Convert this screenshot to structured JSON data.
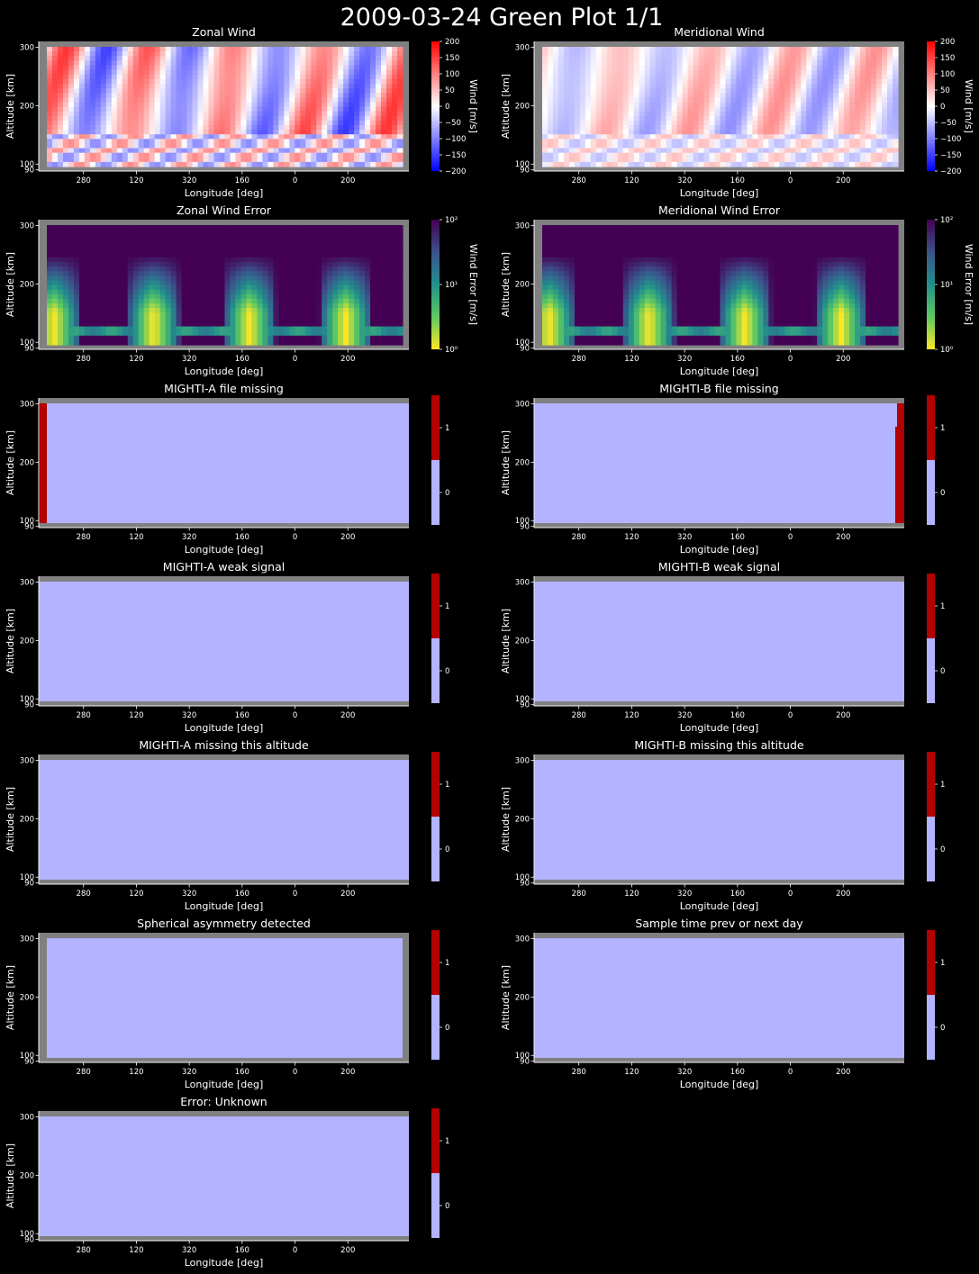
{
  "figure_title": "2009-03-24 Green Plot 1/1",
  "colors": {
    "background": "#000000",
    "nan_gray": "#808080",
    "flag_zero": "#b3b3ff",
    "flag_one": "#b30000",
    "text": "#ffffff"
  },
  "icons": [],
  "chart_data": [
    {
      "type": "heatmap",
      "title": "Zonal Wind",
      "xlabel": "Longitude [deg]",
      "ylabel": "Altitude [km]",
      "xtick_labels": [
        "280",
        "120",
        "320",
        "160",
        "0",
        "200"
      ],
      "yticks": [
        90,
        100,
        200,
        300
      ],
      "ylim": [
        88,
        310
      ],
      "colormap": "bwr",
      "clim": [
        -200,
        200
      ],
      "colorbar_label": "Wind [m/s]",
      "colorbar_ticks": [
        "200",
        "150",
        "100",
        "50",
        "0",
        "−50",
        "−100",
        "−150",
        "−200"
      ]
    },
    {
      "type": "heatmap",
      "title": "Meridional Wind",
      "xlabel": "Longitude [deg]",
      "ylabel": "Altitude [km]",
      "xtick_labels": [
        "280",
        "120",
        "320",
        "160",
        "0",
        "200"
      ],
      "yticks": [
        90,
        100,
        200,
        300
      ],
      "ylim": [
        88,
        310
      ],
      "colormap": "bwr",
      "clim": [
        -200,
        200
      ],
      "colorbar_label": "Wind [m/s]",
      "colorbar_ticks": [
        "200",
        "150",
        "100",
        "50",
        "0",
        "−50",
        "−100",
        "−150",
        "−200"
      ]
    },
    {
      "type": "heatmap",
      "title": "Zonal Wind Error",
      "xlabel": "Longitude [deg]",
      "ylabel": "Altitude [km]",
      "xtick_labels": [
        "280",
        "120",
        "320",
        "160",
        "0",
        "200"
      ],
      "yticks": [
        90,
        100,
        200,
        300
      ],
      "ylim": [
        88,
        310
      ],
      "colormap": "viridis_r",
      "colorbar_scale": "log",
      "clim": [
        1,
        100
      ],
      "colorbar_label": "Wind Error [m/s]",
      "colorbar_ticks": [
        "10²",
        "10¹",
        "10⁰"
      ]
    },
    {
      "type": "heatmap",
      "title": "Meridional Wind Error",
      "xlabel": "Longitude [deg]",
      "ylabel": "Altitude [km]",
      "xtick_labels": [
        "280",
        "120",
        "320",
        "160",
        "0",
        "200"
      ],
      "yticks": [
        90,
        100,
        200,
        300
      ],
      "ylim": [
        88,
        310
      ],
      "colormap": "viridis_r",
      "colorbar_scale": "log",
      "clim": [
        1,
        100
      ],
      "colorbar_label": "Wind Error [m/s]",
      "colorbar_ticks": [
        "10²",
        "10¹",
        "10⁰"
      ]
    },
    {
      "type": "heatmap",
      "title": "MIGHTI-A file missing",
      "xlabel": "Longitude [deg]",
      "ylabel": "Altitude [km]",
      "xtick_labels": [
        "280",
        "120",
        "320",
        "160",
        "0",
        "200"
      ],
      "yticks": [
        90,
        100,
        200,
        300
      ],
      "ylim": [
        88,
        310
      ],
      "colormap": "flag",
      "colorbar_label": "",
      "colorbar_ticks": [
        "1",
        "0"
      ]
    },
    {
      "type": "heatmap",
      "title": "MIGHTI-B file missing",
      "xlabel": "Longitude [deg]",
      "ylabel": "Altitude [km]",
      "xtick_labels": [
        "280",
        "120",
        "320",
        "160",
        "0",
        "200"
      ],
      "yticks": [
        90,
        100,
        200,
        300
      ],
      "ylim": [
        88,
        310
      ],
      "colormap": "flag",
      "colorbar_label": "",
      "colorbar_ticks": [
        "1",
        "0"
      ]
    },
    {
      "type": "heatmap",
      "title": "MIGHTI-A weak signal",
      "xlabel": "Longitude [deg]",
      "ylabel": "Altitude [km]",
      "xtick_labels": [
        "280",
        "120",
        "320",
        "160",
        "0",
        "200"
      ],
      "yticks": [
        90,
        100,
        200,
        300
      ],
      "ylim": [
        88,
        310
      ],
      "colormap": "flag",
      "colorbar_label": "",
      "colorbar_ticks": [
        "1",
        "0"
      ]
    },
    {
      "type": "heatmap",
      "title": "MIGHTI-B weak signal",
      "xlabel": "Longitude [deg]",
      "ylabel": "Altitude [km]",
      "xtick_labels": [
        "280",
        "120",
        "320",
        "160",
        "0",
        "200"
      ],
      "yticks": [
        90,
        100,
        200,
        300
      ],
      "ylim": [
        88,
        310
      ],
      "colormap": "flag",
      "colorbar_label": "",
      "colorbar_ticks": [
        "1",
        "0"
      ]
    },
    {
      "type": "heatmap",
      "title": "MIGHTI-A missing this altitude",
      "xlabel": "Longitude [deg]",
      "ylabel": "Altitude [km]",
      "xtick_labels": [
        "280",
        "120",
        "320",
        "160",
        "0",
        "200"
      ],
      "yticks": [
        90,
        100,
        200,
        300
      ],
      "ylim": [
        88,
        310
      ],
      "colormap": "flag",
      "colorbar_label": "",
      "colorbar_ticks": [
        "1",
        "0"
      ]
    },
    {
      "type": "heatmap",
      "title": "MIGHTI-B missing this altitude",
      "xlabel": "Longitude [deg]",
      "ylabel": "Altitude [km]",
      "xtick_labels": [
        "280",
        "120",
        "320",
        "160",
        "0",
        "200"
      ],
      "yticks": [
        90,
        100,
        200,
        300
      ],
      "ylim": [
        88,
        310
      ],
      "colormap": "flag",
      "colorbar_label": "",
      "colorbar_ticks": [
        "1",
        "0"
      ]
    },
    {
      "type": "heatmap",
      "title": "Spherical asymmetry detected",
      "xlabel": "Longitude [deg]",
      "ylabel": "Altitude [km]",
      "xtick_labels": [
        "280",
        "120",
        "320",
        "160",
        "0",
        "200"
      ],
      "yticks": [
        90,
        100,
        200,
        300
      ],
      "ylim": [
        88,
        310
      ],
      "colormap": "flag",
      "colorbar_label": "",
      "colorbar_ticks": [
        "1",
        "0"
      ]
    },
    {
      "type": "heatmap",
      "title": "Sample time prev or next day",
      "xlabel": "Longitude [deg]",
      "ylabel": "Altitude [km]",
      "xtick_labels": [
        "280",
        "120",
        "320",
        "160",
        "0",
        "200"
      ],
      "yticks": [
        90,
        100,
        200,
        300
      ],
      "ylim": [
        88,
        310
      ],
      "colormap": "flag",
      "colorbar_label": "",
      "colorbar_ticks": [
        "1",
        "0"
      ]
    },
    {
      "type": "heatmap",
      "title": "Error: Unknown",
      "xlabel": "Longitude [deg]",
      "ylabel": "Altitude [km]",
      "xtick_labels": [
        "280",
        "120",
        "320",
        "160",
        "0",
        "200"
      ],
      "yticks": [
        90,
        100,
        200,
        300
      ],
      "ylim": [
        88,
        310
      ],
      "colormap": "flag",
      "colorbar_label": "",
      "colorbar_ticks": [
        "1",
        "0"
      ]
    }
  ]
}
